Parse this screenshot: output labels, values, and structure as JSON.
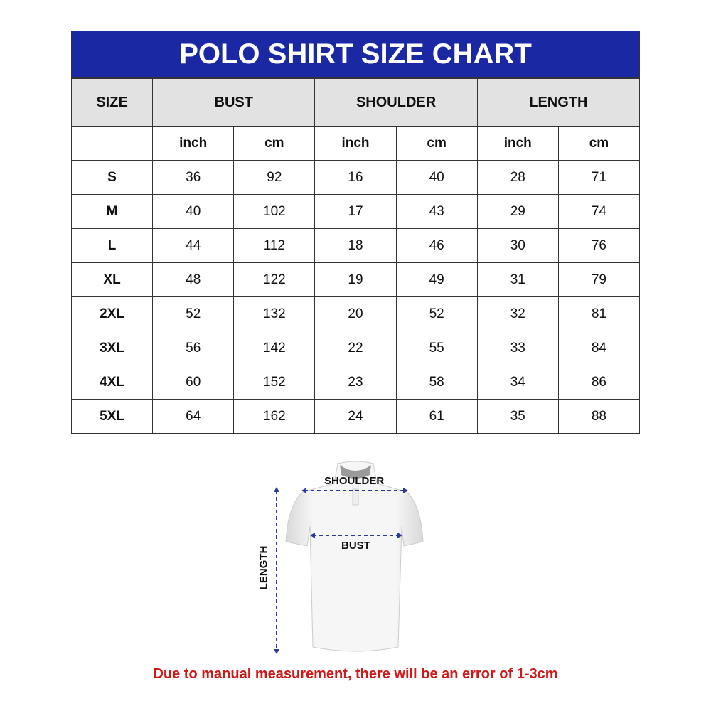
{
  "title": "POLO SHIRT SIZE CHART",
  "headers": [
    "SIZE",
    "BUST",
    "SHOULDER",
    "LENGTH"
  ],
  "units": [
    "inch",
    "cm",
    "inch",
    "cm",
    "inch",
    "cm"
  ],
  "rows": [
    {
      "size": "S",
      "values": [
        "36",
        "92",
        "16",
        "40",
        "28",
        "71"
      ]
    },
    {
      "size": "M",
      "values": [
        "40",
        "102",
        "17",
        "43",
        "29",
        "74"
      ]
    },
    {
      "size": "L",
      "values": [
        "44",
        "112",
        "18",
        "46",
        "30",
        "76"
      ]
    },
    {
      "size": "XL",
      "values": [
        "48",
        "122",
        "19",
        "49",
        "31",
        "79"
      ]
    },
    {
      "size": "2XL",
      "values": [
        "52",
        "132",
        "20",
        "52",
        "32",
        "81"
      ]
    },
    {
      "size": "3XL",
      "values": [
        "56",
        "142",
        "22",
        "55",
        "33",
        "84"
      ]
    },
    {
      "size": "4XL",
      "values": [
        "60",
        "152",
        "23",
        "58",
        "34",
        "86"
      ]
    },
    {
      "size": "5XL",
      "values": [
        "64",
        "162",
        "24",
        "61",
        "35",
        "88"
      ]
    }
  ],
  "diagram": {
    "shoulder": "SHOULDER",
    "bust": "BUST",
    "length": "LENGTH"
  },
  "note": "Due to manual measurement, there will be an error of 1-3cm",
  "colors": {
    "header": "#1b28a3",
    "note": "#d11818",
    "arrow": "#2a3a9a"
  }
}
